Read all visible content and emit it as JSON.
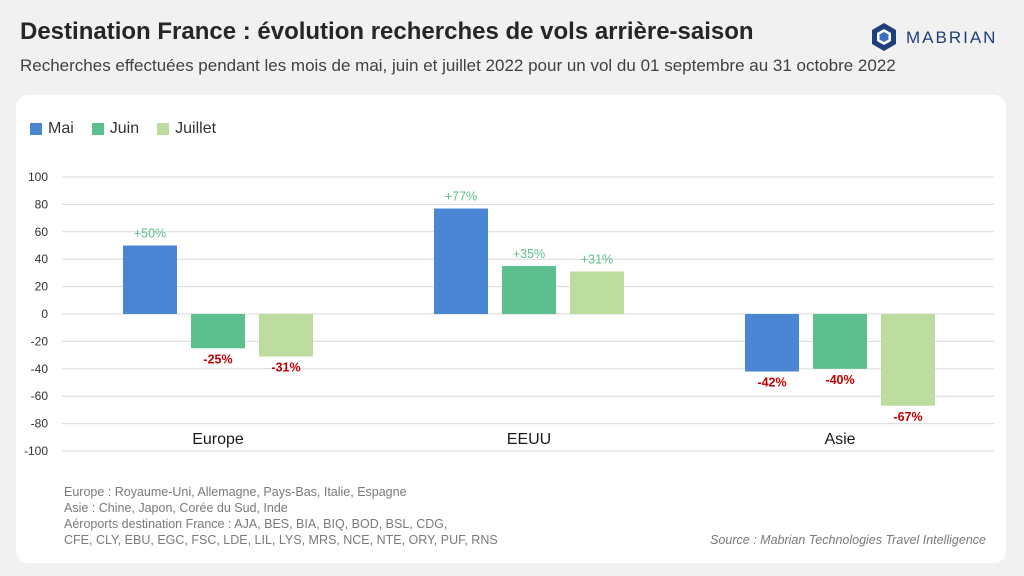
{
  "title": "Destination France : évolution recherches de vols arrière-saison",
  "subtitle": "Recherches effectuées pendant les mois de mai, juin et juillet 2022 pour un vol du 01 septembre au 31 octobre 2022",
  "logo": {
    "text": "MABRIAN"
  },
  "notes": [
    "Europe : Royaume-Uni, Allemagne, Pays-Bas, Italie, Espagne",
    "Asie : Chine, Japon, Corée du Sud, Inde",
    "Aéroports destination France : AJA, BES, BIA, BIQ, BOD, BSL, CDG,",
    "CFE, CLY, EBU, EGC, FSC, LDE, LIL, LYS, MRS, NCE, NTE, ORY, PUF, RNS"
  ],
  "source": "Source : Mabrian Technologies Travel Intelligence",
  "colors": {
    "positive_label": "#5bbf8e",
    "negative_label": "#c00000",
    "grid": "#d9d9d9",
    "axis_text": "#333333"
  },
  "chart_data": {
    "type": "bar",
    "categories": [
      "Europe",
      "EEUU",
      "Asie"
    ],
    "series": [
      {
        "name": "Mai",
        "color": "#4a86d4",
        "values": [
          50,
          77,
          -42
        ],
        "labels": [
          "+50%",
          "+77%",
          "-42%"
        ]
      },
      {
        "name": "Juin",
        "color": "#5bbf8e",
        "values": [
          -25,
          35,
          -40
        ],
        "labels": [
          "-25%",
          "+35%",
          "-40%"
        ]
      },
      {
        "name": "Juillet",
        "color": "#bcdca0",
        "values": [
          -31,
          31,
          -67
        ],
        "labels": [
          "-31%",
          "+31%",
          "-67%"
        ]
      }
    ],
    "ylim": [
      -100,
      100
    ],
    "yticks": [
      100,
      80,
      60,
      40,
      20,
      0,
      -20,
      -40,
      -60,
      -80,
      -100
    ],
    "grid": true,
    "legend": "top-left"
  }
}
